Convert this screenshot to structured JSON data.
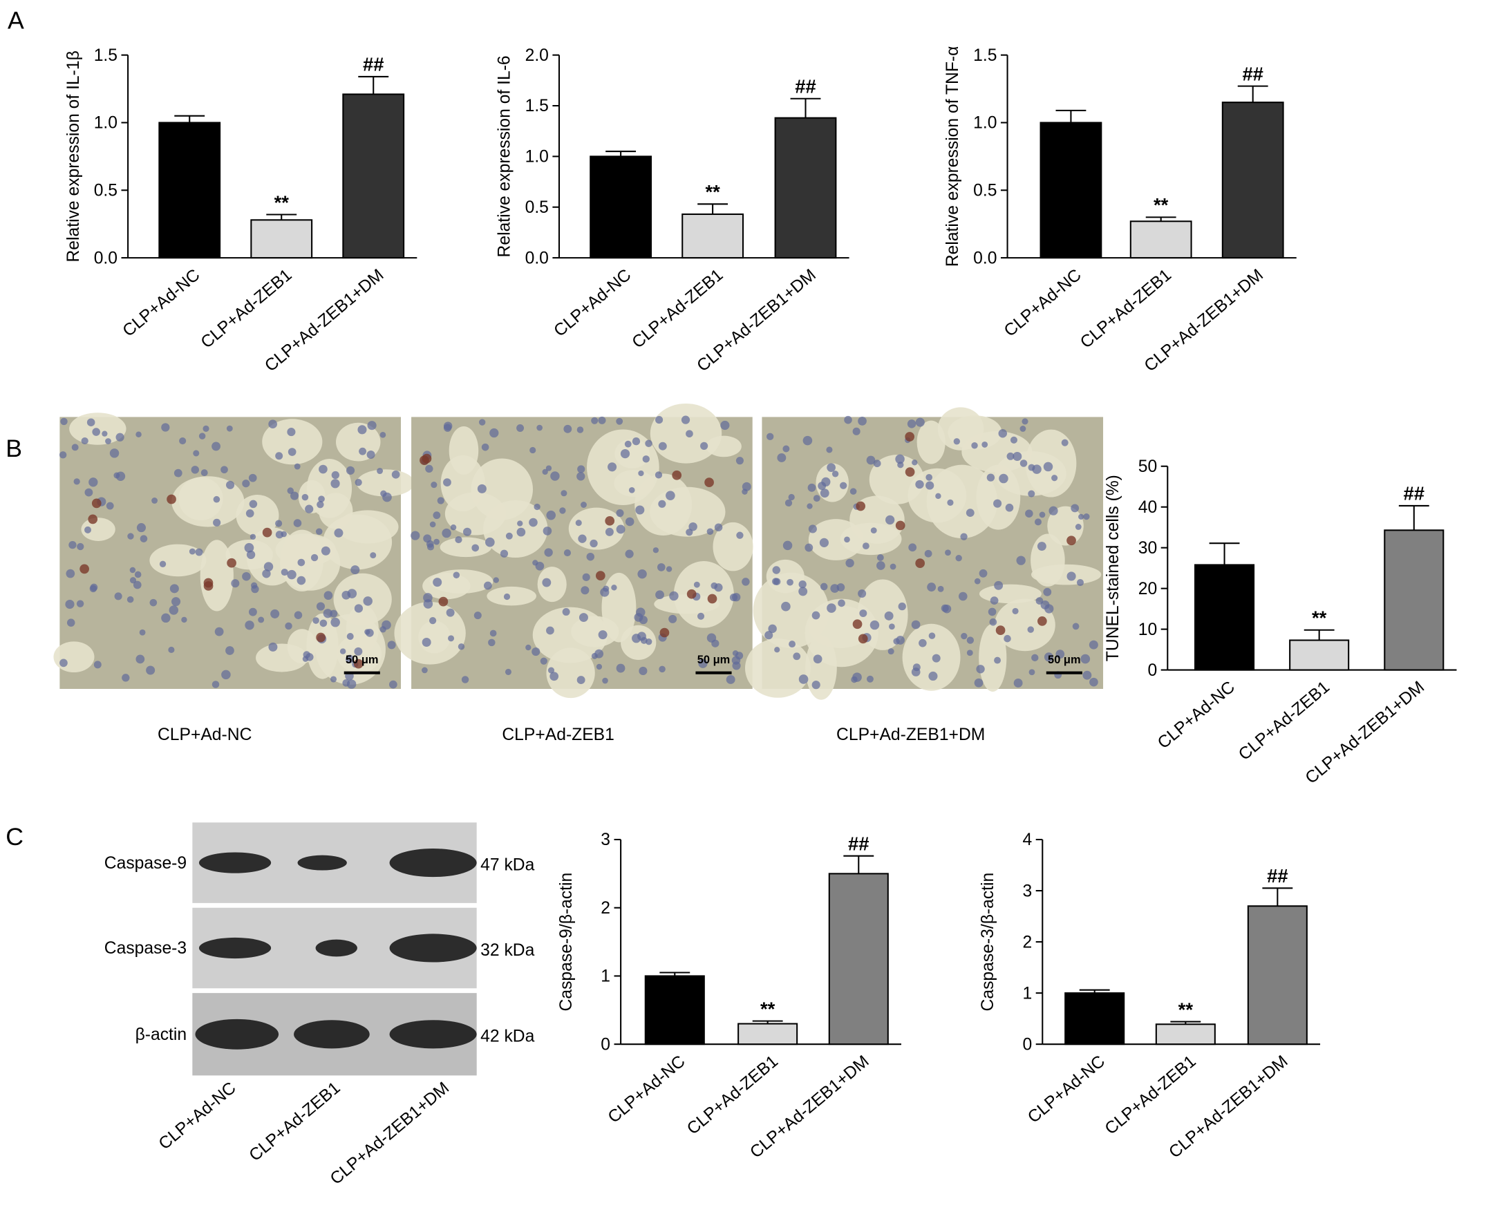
{
  "panel_labels": [
    "A",
    "B",
    "C"
  ],
  "micrographs": {
    "captions": [
      "CLP+Ad-NC",
      "CLP+Ad-ZEB1",
      "CLP+Ad-ZEB1+DM"
    ],
    "scale_bar": "50 μm"
  },
  "blot": {
    "rows": [
      {
        "protein": "Caspase-9",
        "size": "47 kDa"
      },
      {
        "protein": "Caspase-3",
        "size": "32 kDa"
      },
      {
        "protein": "β-actin",
        "size": "42 kDa"
      }
    ],
    "lanes": [
      "CLP+Ad-NC",
      "CLP+Ad-ZEB1",
      "CLP+Ad-ZEB1+DM"
    ]
  },
  "chart_data": [
    {
      "type": "bar",
      "y_label": "Relative expression of IL-1β",
      "categories": [
        "CLP+Ad-NC",
        "CLP+Ad-ZEB1",
        "CLP+Ad-ZEB1+DM"
      ],
      "values": [
        1.0,
        0.28,
        1.21
      ],
      "errors": [
        0.05,
        0.04,
        0.13
      ],
      "annotations": [
        null,
        "**",
        "##"
      ],
      "colors": [
        "#000000",
        "#d9d9d9",
        "#333333"
      ],
      "ylim": [
        0,
        1.5
      ],
      "yticks": [
        {
          "value": 0,
          "label": "0.0"
        },
        0.5,
        {
          "value": 1,
          "label": "1.0"
        },
        1.5
      ]
    },
    {
      "type": "bar",
      "y_label": "Relative expression of IL-6",
      "categories": [
        "CLP+Ad-NC",
        "CLP+Ad-ZEB1",
        "CLP+Ad-ZEB1+DM"
      ],
      "values": [
        1.0,
        0.43,
        1.38
      ],
      "errors": [
        0.05,
        0.1,
        0.19
      ],
      "annotations": [
        null,
        "**",
        "##"
      ],
      "colors": [
        "#000000",
        "#d9d9d9",
        "#333333"
      ],
      "ylim": [
        0,
        2
      ],
      "yticks": [
        {
          "value": 0,
          "label": "0.0"
        },
        0.5,
        {
          "value": 1,
          "label": "1.0"
        },
        1.5,
        {
          "value": 2,
          "label": "2.0"
        }
      ]
    },
    {
      "type": "bar",
      "y_label": "Relative expression of TNF-α",
      "categories": [
        "CLP+Ad-NC",
        "CLP+Ad-ZEB1",
        "CLP+Ad-ZEB1+DM"
      ],
      "values": [
        1.0,
        0.27,
        1.15
      ],
      "errors": [
        0.09,
        0.03,
        0.12
      ],
      "annotations": [
        null,
        "**",
        "##"
      ],
      "colors": [
        "#000000",
        "#d9d9d9",
        "#333333"
      ],
      "ylim": [
        0,
        1.5
      ],
      "yticks": [
        {
          "value": 0,
          "label": "0.0"
        },
        0.5,
        {
          "value": 1,
          "label": "1.0"
        },
        1.5
      ]
    },
    {
      "type": "bar",
      "y_label": "TUNEL-stained cells (%)",
      "categories": [
        "CLP+Ad-NC",
        "CLP+Ad-ZEB1",
        "CLP+Ad-ZEB1+DM"
      ],
      "values": [
        25.8,
        7.3,
        34.3
      ],
      "errors": [
        5.3,
        2.5,
        6.0
      ],
      "annotations": [
        null,
        "**",
        "##"
      ],
      "colors": [
        "#000000",
        "#d9d9d9",
        "#808080"
      ],
      "ylim": [
        0,
        50
      ],
      "yticks": [
        0,
        10,
        20,
        30,
        40,
        50
      ]
    },
    {
      "type": "bar",
      "y_label": "Caspase-9/β-actin",
      "categories": [
        "CLP+Ad-NC",
        "CLP+Ad-ZEB1",
        "CLP+Ad-ZEB1+DM"
      ],
      "values": [
        1.0,
        0.3,
        2.5
      ],
      "errors": [
        0.05,
        0.04,
        0.26
      ],
      "annotations": [
        null,
        "**",
        "##"
      ],
      "colors": [
        "#000000",
        "#d9d9d9",
        "#808080"
      ],
      "ylim": [
        0,
        3
      ],
      "yticks": [
        0,
        1,
        2,
        3
      ]
    },
    {
      "type": "bar",
      "y_label": "Caspase-3/β-actin",
      "categories": [
        "CLP+Ad-NC",
        "CLP+Ad-ZEB1",
        "CLP+Ad-ZEB1+DM"
      ],
      "values": [
        1.0,
        0.39,
        2.7
      ],
      "errors": [
        0.06,
        0.05,
        0.35
      ],
      "annotations": [
        null,
        "**",
        "##"
      ],
      "colors": [
        "#000000",
        "#d9d9d9",
        "#808080"
      ],
      "ylim": [
        0,
        4
      ],
      "yticks": [
        0,
        1,
        2,
        3,
        4
      ]
    }
  ]
}
